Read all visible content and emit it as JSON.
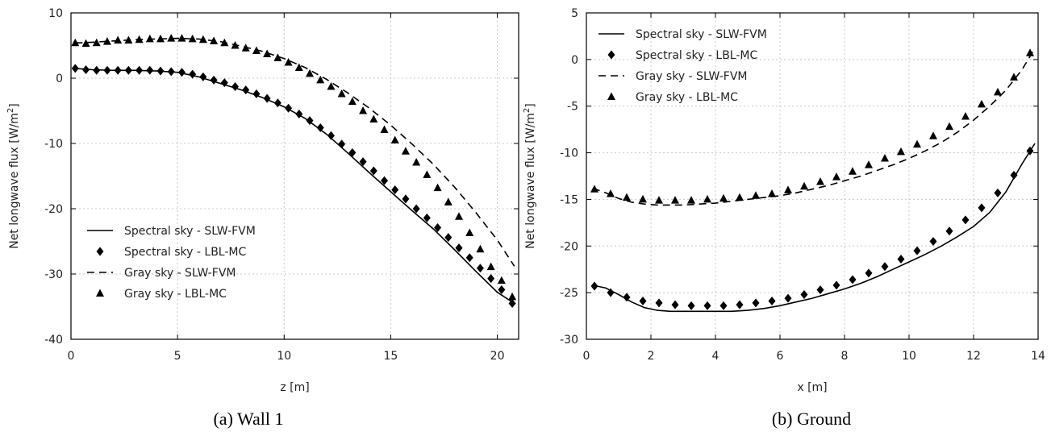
{
  "chart_data": [
    {
      "type": "line",
      "caption": "(a) Wall 1",
      "xlabel": "z [m]",
      "ylabel_main": "Net longwave flux [W/m",
      "ylabel_sup": "2",
      "ylabel_end": "]",
      "xlim": [
        0,
        21
      ],
      "ylim": [
        -40,
        10
      ],
      "xticks": [
        0,
        5,
        10,
        15,
        20
      ],
      "yticks": [
        -40,
        -30,
        -20,
        -10,
        0,
        10
      ],
      "grid": true,
      "legend_position": "bottom-left",
      "series": [
        {
          "name": "Spectral sky - SLW-FVM",
          "style": "solid",
          "x": [
            0.2,
            1,
            2,
            3,
            4,
            5,
            6,
            7,
            8,
            9,
            10,
            11,
            12,
            13,
            14,
            15,
            16,
            17,
            18,
            19,
            20,
            20.8
          ],
          "y": [
            1.5,
            1.3,
            1.2,
            1.2,
            1.1,
            0.9,
            0.2,
            -0.8,
            -1.8,
            -3.0,
            -4.4,
            -6.2,
            -8.6,
            -11.5,
            -14.5,
            -17.4,
            -20.3,
            -23.1,
            -26.3,
            -29.6,
            -32.8,
            -34.5
          ]
        },
        {
          "name": "Spectral sky - LBL-MC",
          "style": "diamond",
          "x": [
            0.2,
            0.7,
            1.2,
            1.7,
            2.2,
            2.7,
            3.2,
            3.7,
            4.2,
            4.7,
            5.2,
            5.7,
            6.2,
            6.7,
            7.2,
            7.7,
            8.2,
            8.7,
            9.2,
            9.7,
            10.2,
            10.7,
            11.2,
            11.7,
            12.2,
            12.7,
            13.2,
            13.7,
            14.2,
            14.7,
            15.2,
            15.7,
            16.2,
            16.7,
            17.2,
            17.7,
            18.2,
            18.7,
            19.2,
            19.7,
            20.2,
            20.7
          ],
          "y": [
            1.5,
            1.3,
            1.2,
            1.2,
            1.2,
            1.2,
            1.2,
            1.2,
            1.1,
            1.0,
            0.9,
            0.6,
            0.2,
            -0.3,
            -0.7,
            -1.3,
            -1.8,
            -2.4,
            -3.1,
            -3.8,
            -4.6,
            -5.5,
            -6.5,
            -7.6,
            -8.8,
            -10.1,
            -11.4,
            -12.8,
            -14.2,
            -15.7,
            -17.1,
            -18.5,
            -20.0,
            -21.4,
            -22.9,
            -24.4,
            -26.0,
            -27.5,
            -29.1,
            -30.7,
            -32.4,
            -34.5
          ]
        },
        {
          "name": "Gray sky - SLW-FVM",
          "style": "dashed",
          "x": [
            0.2,
            1,
            2,
            3,
            4,
            5,
            6,
            7,
            8,
            9,
            10,
            11,
            12,
            13,
            14,
            15,
            16,
            17,
            18,
            19,
            20,
            20.8
          ],
          "y": [
            5.4,
            5.5,
            5.7,
            5.9,
            6.0,
            6.1,
            6.0,
            5.6,
            4.9,
            4.1,
            3.0,
            1.6,
            -0.2,
            -2.3,
            -4.6,
            -7.2,
            -10.1,
            -13.2,
            -16.7,
            -20.6,
            -24.8,
            -28.8
          ]
        },
        {
          "name": "Gray sky - LBL-MC",
          "style": "triangle",
          "x": [
            0.2,
            0.7,
            1.2,
            1.7,
            2.2,
            2.7,
            3.2,
            3.7,
            4.2,
            4.7,
            5.2,
            5.7,
            6.2,
            6.7,
            7.2,
            7.7,
            8.2,
            8.7,
            9.2,
            9.7,
            10.2,
            10.7,
            11.2,
            11.7,
            12.2,
            12.7,
            13.2,
            13.7,
            14.2,
            14.7,
            15.2,
            15.7,
            16.2,
            16.7,
            17.2,
            17.7,
            18.2,
            18.7,
            19.2,
            19.7,
            20.2,
            20.7
          ],
          "y": [
            5.4,
            5.3,
            5.4,
            5.6,
            5.8,
            5.8,
            5.9,
            6.0,
            6.0,
            6.1,
            6.1,
            6.0,
            5.9,
            5.7,
            5.4,
            5.0,
            4.6,
            4.2,
            3.7,
            3.1,
            2.4,
            1.6,
            0.7,
            -0.3,
            -1.3,
            -2.4,
            -3.6,
            -5.0,
            -6.3,
            -7.9,
            -9.5,
            -11.2,
            -12.9,
            -14.8,
            -16.8,
            -19.0,
            -21.2,
            -23.7,
            -26.2,
            -28.9,
            -31.0,
            -33.5
          ]
        }
      ]
    },
    {
      "type": "line",
      "caption": "(b) Ground",
      "xlabel": "x [m]",
      "ylabel_main": "Net longwave flux [W/m",
      "ylabel_sup": "2",
      "ylabel_end": "]",
      "xlim": [
        0,
        14
      ],
      "ylim": [
        -30,
        5
      ],
      "xticks": [
        0,
        2,
        4,
        6,
        8,
        10,
        12,
        14
      ],
      "yticks": [
        -30,
        -25,
        -20,
        -15,
        -10,
        -5,
        0,
        5
      ],
      "grid": true,
      "legend_position": "top-left",
      "series": [
        {
          "name": "Spectral sky - SLW-FVM",
          "style": "solid",
          "x": [
            0.2,
            0.6,
            1.0,
            1.4,
            1.8,
            2.2,
            2.6,
            3.0,
            3.5,
            4.0,
            4.5,
            5.0,
            5.5,
            6.0,
            6.5,
            7.0,
            7.5,
            8.0,
            8.5,
            9.0,
            9.5,
            10.0,
            10.5,
            11.0,
            11.5,
            12.0,
            12.5,
            13.0,
            13.5,
            13.9
          ],
          "y": [
            -24.2,
            -24.5,
            -25.2,
            -26.0,
            -26.6,
            -26.9,
            -27.0,
            -27.0,
            -27.0,
            -27.0,
            -27.0,
            -26.9,
            -26.7,
            -26.4,
            -26.0,
            -25.6,
            -25.1,
            -24.6,
            -24.0,
            -23.3,
            -22.5,
            -21.7,
            -20.9,
            -20.0,
            -19.0,
            -17.9,
            -16.4,
            -14.2,
            -11.2,
            -9.0
          ]
        },
        {
          "name": "Spectral sky - LBL-MC",
          "style": "diamond",
          "x": [
            0.25,
            0.75,
            1.25,
            1.75,
            2.25,
            2.75,
            3.25,
            3.75,
            4.25,
            4.75,
            5.25,
            5.75,
            6.25,
            6.75,
            7.25,
            7.75,
            8.25,
            8.75,
            9.25,
            9.75,
            10.25,
            10.75,
            11.25,
            11.75,
            12.25,
            12.75,
            13.25,
            13.75
          ],
          "y": [
            -24.3,
            -25.0,
            -25.5,
            -25.9,
            -26.1,
            -26.3,
            -26.4,
            -26.4,
            -26.4,
            -26.3,
            -26.1,
            -25.9,
            -25.6,
            -25.2,
            -24.7,
            -24.2,
            -23.6,
            -22.9,
            -22.2,
            -21.4,
            -20.5,
            -19.5,
            -18.4,
            -17.2,
            -15.9,
            -14.3,
            -12.4,
            -9.8
          ]
        },
        {
          "name": "Gray sky - SLW-FVM",
          "style": "dashed",
          "x": [
            0.2,
            0.6,
            1.0,
            1.4,
            1.8,
            2.2,
            2.6,
            3.0,
            3.5,
            4.0,
            4.5,
            5.0,
            5.5,
            6.0,
            6.5,
            7.0,
            7.5,
            8.0,
            8.5,
            9.0,
            9.5,
            10.0,
            10.5,
            11.0,
            11.5,
            12.0,
            12.5,
            13.0,
            13.5,
            13.9
          ],
          "y": [
            -13.8,
            -14.3,
            -14.9,
            -15.3,
            -15.5,
            -15.6,
            -15.6,
            -15.6,
            -15.5,
            -15.4,
            -15.2,
            -15.0,
            -14.8,
            -14.6,
            -14.3,
            -13.9,
            -13.5,
            -13.0,
            -12.5,
            -11.9,
            -11.3,
            -10.6,
            -9.8,
            -8.9,
            -7.8,
            -6.5,
            -5.0,
            -3.3,
            -1.1,
            1.2
          ]
        },
        {
          "name": "Gray sky - LBL-MC",
          "style": "triangle",
          "x": [
            0.25,
            0.75,
            1.25,
            1.75,
            2.25,
            2.75,
            3.25,
            3.75,
            4.25,
            4.75,
            5.25,
            5.75,
            6.25,
            6.75,
            7.25,
            7.75,
            8.25,
            8.75,
            9.25,
            9.75,
            10.25,
            10.75,
            11.25,
            11.75,
            12.25,
            12.75,
            13.25,
            13.75
          ],
          "y": [
            -13.9,
            -14.4,
            -14.8,
            -15.0,
            -15.1,
            -15.1,
            -15.1,
            -15.0,
            -14.9,
            -14.8,
            -14.6,
            -14.4,
            -14.0,
            -13.6,
            -13.1,
            -12.6,
            -12.0,
            -11.3,
            -10.6,
            -9.9,
            -9.1,
            -8.2,
            -7.2,
            -6.1,
            -4.8,
            -3.5,
            -1.9,
            0.7
          ]
        }
      ]
    }
  ]
}
